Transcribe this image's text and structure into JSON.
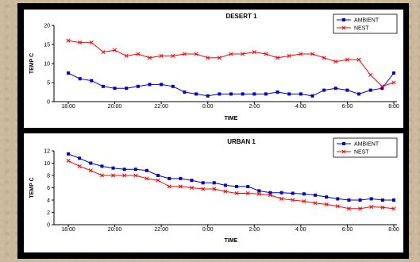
{
  "chart_data": [
    {
      "type": "line",
      "title": "DESERT 1",
      "xlabel": "TIME",
      "ylabel": "TEMP C",
      "x_ticks": [
        "18:00",
        "20:00",
        "22:00",
        "0:00",
        "2:00",
        "4:00",
        "6:00",
        "8:00"
      ],
      "y_ticks": [
        "0",
        "5",
        "10",
        "15",
        "20"
      ],
      "ylim": [
        0,
        20
      ],
      "legend_position": "top-right",
      "grid": false,
      "series": [
        {
          "name": "AMBIENT",
          "color": "#0000cc",
          "marker": "square",
          "values": [
            7.5,
            6.0,
            5.5,
            4.0,
            3.5,
            3.5,
            4.0,
            4.5,
            4.5,
            4.0,
            2.5,
            2.0,
            1.5,
            2.0,
            2.0,
            2.0,
            2.0,
            2.0,
            2.5,
            2.0,
            2.0,
            1.5,
            3.0,
            3.5,
            3.0,
            2.0,
            3.0,
            3.5,
            7.5
          ]
        },
        {
          "name": "NEST",
          "color": "#ff0000",
          "marker": "x",
          "values": [
            16.0,
            15.5,
            15.5,
            13.0,
            13.5,
            12.0,
            12.5,
            11.5,
            12.0,
            12.0,
            12.5,
            12.5,
            11.5,
            11.5,
            12.5,
            12.5,
            13.0,
            12.5,
            11.5,
            12.0,
            12.5,
            12.5,
            11.5,
            10.5,
            11.0,
            11.0,
            7.0,
            4.0,
            5.0
          ]
        }
      ]
    },
    {
      "type": "line",
      "title": "URBAN 1",
      "xlabel": "TIME",
      "ylabel": "TEMP C",
      "x_ticks": [
        "18:00",
        "20:00",
        "22:00",
        "0:00",
        "2:00",
        "4:00",
        "6:00",
        "8:00"
      ],
      "y_ticks": [
        "0",
        "2",
        "4",
        "6",
        "8",
        "10",
        "12"
      ],
      "ylim": [
        0,
        12
      ],
      "legend_position": "top-right",
      "grid": false,
      "series": [
        {
          "name": "AMBIENT",
          "color": "#0000cc",
          "marker": "square",
          "values": [
            11.5,
            10.8,
            10.0,
            9.5,
            9.2,
            9.0,
            9.0,
            8.8,
            8.0,
            7.5,
            7.5,
            7.2,
            6.8,
            6.8,
            6.4,
            6.2,
            6.2,
            5.5,
            5.2,
            5.2,
            5.1,
            5.0,
            4.8,
            4.5,
            4.2,
            4.0,
            4.0,
            4.2,
            4.0,
            4.0
          ]
        },
        {
          "name": "NEST",
          "color": "#ff0000",
          "marker": "x",
          "values": [
            10.4,
            9.5,
            8.8,
            8.0,
            8.0,
            8.0,
            8.0,
            7.5,
            7.2,
            6.2,
            6.2,
            6.0,
            5.8,
            5.8,
            5.4,
            5.1,
            5.1,
            5.0,
            4.8,
            4.2,
            4.0,
            3.8,
            3.5,
            3.3,
            3.0,
            2.6,
            2.6,
            2.9,
            2.8,
            2.6
          ]
        }
      ]
    }
  ]
}
